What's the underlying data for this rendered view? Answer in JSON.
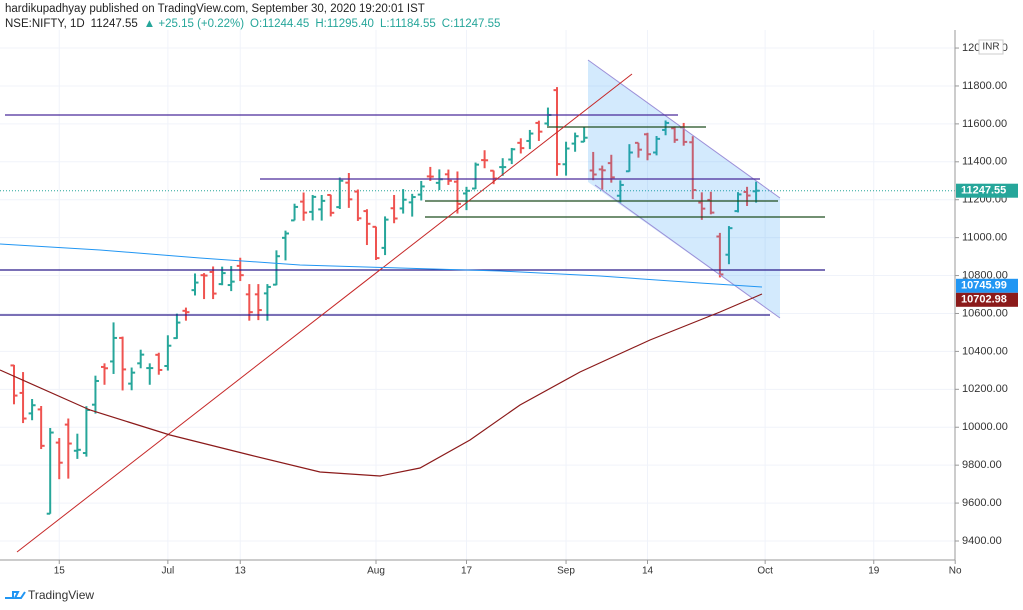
{
  "chart_data": {
    "type": "ohlc",
    "publisher_line": "hardikupadhyay published on TradingView.com, September 30, 2020 19:20:01 IST",
    "symbol": "NSE:NIFTY, 1D",
    "last": "11247.55",
    "change": "▲ +25.15 (+0.22%)",
    "ohlc_header": [
      "O:11244.45",
      "H:11295.40",
      "L:11184.55",
      "C:11247.55"
    ],
    "currency": "INR",
    "brand": "TradingView",
    "open": [
      10326,
      10181,
      10073,
      10094,
      9544,
      9919,
      10014,
      9876,
      9864,
      10119,
      10318,
      10347,
      10471,
      10230,
      10337,
      10312,
      10382,
      10323,
      10470,
      10614,
      10723,
      10802,
      10819,
      10755,
      10750,
      10851,
      10701,
      10701,
      10706,
      10752,
      10999,
      11091,
      11190,
      11136,
      11149,
      11225,
      11161,
      11290,
      11243,
      11140,
      11057,
      10946,
      11155,
      11154,
      11186,
      11227,
      11323,
      11289,
      11334,
      11295,
      11233,
      11259,
      11409,
      11353,
      11372,
      11412,
      11500,
      11510,
      11605,
      11602,
      11778,
      11387,
      11496,
      11506,
      11354,
      11360,
      11393,
      11221,
      11350,
      11500,
      11545,
      11449,
      11568,
      11577,
      11582,
      11503,
      11185,
      11199,
      11006,
      10910,
      11140,
      11241,
      11244.45
    ],
    "high": [
      10329,
      10291,
      10149,
      10112,
      9996,
      9943,
      10046,
      9966,
      10111,
      10272,
      10337,
      10553,
      10478,
      10315,
      10409,
      10337,
      10393,
      10485,
      10599,
      10631,
      10811,
      10813,
      10848,
      10847,
      10850,
      10894,
      10755,
      10755,
      10755,
      10933,
      11037,
      11179,
      11238,
      11225,
      11225,
      11226,
      11317,
      11341,
      11254,
      11150,
      11058,
      11112,
      11225,
      11256,
      11231,
      11299,
      11373,
      11360,
      11359,
      11349,
      11268,
      11396,
      11461,
      11354,
      11419,
      11473,
      11524,
      11568,
      11617,
      11686,
      11794,
      11506,
      11554,
      11584,
      11452,
      11380,
      11437,
      11302,
      11493,
      11500,
      11553,
      11536,
      11618,
      11587,
      11605,
      11535,
      11239,
      11242,
      11025,
      11061,
      11240,
      11268,
      11295.4
    ],
    "low": [
      10121,
      10022,
      10037,
      9885,
      9544,
      9726,
      9729,
      9833,
      9845,
      10072,
      10224,
      10281,
      10194,
      10195,
      10311,
      10224,
      10277,
      10299,
      10466,
      10562,
      10695,
      10676,
      10676,
      10749,
      10718,
      10771,
      10562,
      10565,
      10562,
      10749,
      10880,
      11091,
      11089,
      11091,
      11090,
      11112,
      11151,
      11157,
      11088,
      10961,
      10882,
      10908,
      11076,
      11127,
      11111,
      11196,
      11299,
      11251,
      11278,
      11127,
      11145,
      11256,
      11366,
      11282,
      11326,
      11388,
      11444,
      11467,
      11510,
      11589,
      11326,
      11327,
      11453,
      11504,
      11303,
      11253,
      11290,
      11185,
      11348,
      11422,
      11408,
      11434,
      11540,
      11500,
      11485,
      11203,
      11094,
      11123,
      10790,
      10860,
      11133,
      11167,
      11184.55
    ],
    "close": [
      10167,
      10046,
      10116,
      9902,
      9972,
      9813,
      9914,
      9881,
      10091,
      10244,
      10311,
      10471,
      10305,
      10288,
      10383,
      10312,
      10302,
      10430,
      10552,
      10607,
      10763,
      10800,
      10705,
      10813,
      10768,
      10802,
      10607,
      10618,
      10740,
      10902,
      11022,
      11162,
      11132,
      11215,
      11194,
      11131,
      11300,
      11202,
      11102,
      11073,
      10892,
      11095,
      11101,
      11200,
      11214,
      11270,
      11322,
      11308,
      11300,
      11178,
      11247,
      11385,
      11408,
      11312,
      11372,
      11466,
      11472,
      11549,
      11559,
      11647,
      11388,
      11470,
      11535,
      11527,
      11333,
      11355,
      11318,
      11278,
      11449,
      11464,
      11440,
      11521,
      11605,
      11516,
      11505,
      11251,
      11153,
      11132,
      10806,
      11050,
      11228,
      11222,
      11247.55
    ],
    "up_color": "#26a69a",
    "down_color": "#ef5350",
    "xticks": [
      {
        "value": 5,
        "label": "15"
      },
      {
        "value": 17,
        "label": "Jul"
      },
      {
        "value": 25,
        "label": "13"
      },
      {
        "value": 40,
        "label": "Aug"
      },
      {
        "value": 50,
        "label": "17"
      },
      {
        "value": 61,
        "label": "Sep"
      },
      {
        "value": 70,
        "label": "14"
      },
      {
        "value": 83,
        "label": "Oct"
      },
      {
        "value": 95,
        "label": "19"
      },
      {
        "value": 104,
        "label": "No"
      }
    ],
    "ylim": [
      9400,
      12000
    ],
    "yticks": [
      {
        "value": 9400,
        "label": "9400.00"
      },
      {
        "value": 9600,
        "label": "9600.00"
      },
      {
        "value": 9800,
        "label": "9800.00"
      },
      {
        "value": 10000,
        "label": "10000.00"
      },
      {
        "value": 10200,
        "label": "10200.00"
      },
      {
        "value": 10400,
        "label": "10400.00"
      },
      {
        "value": 10600,
        "label": "10600.00"
      },
      {
        "value": 10800,
        "label": "10800.00"
      },
      {
        "value": 11000,
        "label": "11000.00"
      },
      {
        "value": 11200,
        "label": "11200.00"
      },
      {
        "value": 11400,
        "label": "11400.00"
      },
      {
        "value": 11600,
        "label": "11600.00"
      },
      {
        "value": 11800,
        "label": "11800.00"
      },
      {
        "value": 12000,
        "label": "12000.00"
      }
    ],
    "grid": true,
    "price_labels": [
      {
        "value": 11247.55,
        "label": "11247.55",
        "color": "#26a69a"
      },
      {
        "value": 10745.99,
        "label": "10745.99",
        "color": "#2196f3"
      },
      {
        "value": 10702.98,
        "label": "10702.98",
        "color": "#8b1a1a"
      }
    ]
  }
}
